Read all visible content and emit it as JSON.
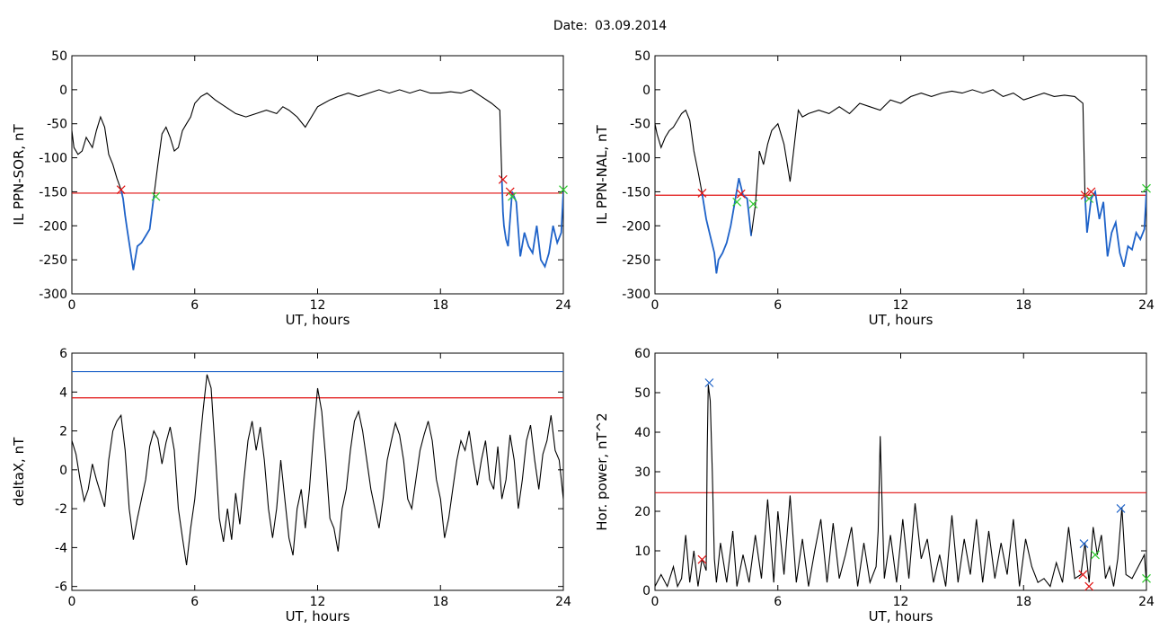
{
  "header": {
    "date_label": "Date:",
    "date_value": "03.09.2014"
  },
  "colors": {
    "trace": "#000000",
    "highlight": "#1f63c9",
    "threshold": "#e01010",
    "upper_threshold": "#1f63c9",
    "marker_red": "#e01010",
    "marker_green": "#2ecc2e",
    "marker_blue": "#1f63c9"
  },
  "chart_data": [
    {
      "id": "p1",
      "type": "line",
      "xlabel": "UT, hours",
      "ylabel": "IL PPN-SOR, nT",
      "xlim": [
        0,
        24
      ],
      "ylim": [
        -300,
        50
      ],
      "xticks": [
        0,
        6,
        12,
        18,
        24
      ],
      "yticks": [
        50,
        0,
        -50,
        -100,
        -150,
        -200,
        -250,
        -300
      ],
      "series": [
        {
          "x": [
            0,
            0.1,
            0.3,
            0.5,
            0.7,
            0.8,
            1.0,
            1.2,
            1.4,
            1.6,
            1.8,
            2.0,
            2.2,
            2.4,
            2.5,
            2.6,
            2.7,
            2.8,
            3.0,
            3.2,
            3.4,
            3.6,
            3.8,
            4.0,
            4.2,
            4.4,
            4.6,
            4.8,
            5.0,
            5.2,
            5.4,
            5.6,
            5.8,
            6.0,
            6.3,
            6.6,
            7.0,
            7.5,
            8.0,
            8.5,
            9.0,
            9.5,
            10.0,
            10.3,
            10.6,
            11.0,
            11.4,
            11.8,
            12.0,
            12.3,
            12.6,
            13.0,
            13.5,
            14.0,
            14.5,
            15.0,
            15.5,
            16.0,
            16.5,
            17.0,
            17.5,
            18.0,
            18.5,
            19.0,
            19.5,
            20.0,
            20.5,
            20.9,
            21.0,
            21.05,
            21.1,
            21.2,
            21.3,
            21.5,
            21.7,
            21.9,
            22.1,
            22.3,
            22.5,
            22.7,
            22.9,
            23.1,
            23.3,
            23.5,
            23.7,
            23.9,
            24.0
          ],
          "y": [
            -60,
            -85,
            -95,
            -90,
            -70,
            -75,
            -85,
            -60,
            -40,
            -55,
            -95,
            -110,
            -130,
            -147,
            -160,
            -185,
            -205,
            -225,
            -265,
            -230,
            -225,
            -215,
            -205,
            -157,
            -110,
            -65,
            -55,
            -70,
            -90,
            -85,
            -60,
            -50,
            -40,
            -20,
            -10,
            -5,
            -15,
            -25,
            -35,
            -40,
            -35,
            -30,
            -35,
            -25,
            -30,
            -40,
            -55,
            -35,
            -25,
            -20,
            -15,
            -10,
            -5,
            -10,
            -5,
            0,
            -5,
            0,
            -5,
            0,
            -5,
            -5,
            -3,
            -5,
            0,
            -10,
            -20,
            -30,
            -132,
            -180,
            -200,
            -220,
            -230,
            -150,
            -165,
            -245,
            -210,
            -230,
            -240,
            -200,
            -250,
            -260,
            -240,
            -200,
            -225,
            -210,
            -150
          ]
        }
      ],
      "threshold": -152,
      "highlight_intervals": [
        [
          2.4,
          4.1
        ],
        [
          20.95,
          24.0
        ]
      ],
      "markers": [
        {
          "x": 2.4,
          "y": -147,
          "color": "red"
        },
        {
          "x": 4.1,
          "y": -157,
          "color": "green"
        },
        {
          "x": 21.05,
          "y": -132,
          "color": "red"
        },
        {
          "x": 21.4,
          "y": -150,
          "color": "red"
        },
        {
          "x": 21.5,
          "y": -157,
          "color": "green"
        },
        {
          "x": 24.0,
          "y": -147,
          "color": "green"
        }
      ]
    },
    {
      "id": "p2",
      "type": "line",
      "xlabel": "UT, hours",
      "ylabel": "IL PPN-NAL, nT",
      "xlim": [
        0,
        24
      ],
      "ylim": [
        -300,
        50
      ],
      "xticks": [
        0,
        6,
        12,
        18,
        24
      ],
      "yticks": [
        50,
        0,
        -50,
        -100,
        -150,
        -200,
        -250,
        -300
      ],
      "series": [
        {
          "x": [
            0,
            0.1,
            0.3,
            0.5,
            0.7,
            0.9,
            1.1,
            1.3,
            1.5,
            1.7,
            1.9,
            2.1,
            2.3,
            2.5,
            2.7,
            2.9,
            3.0,
            3.1,
            3.3,
            3.5,
            3.7,
            3.9,
            4.1,
            4.3,
            4.5,
            4.7,
            4.9,
            5.1,
            5.3,
            5.5,
            5.7,
            6.0,
            6.3,
            6.6,
            7.0,
            7.2,
            7.5,
            8.0,
            8.5,
            9.0,
            9.5,
            10.0,
            10.5,
            11.0,
            11.5,
            12.0,
            12.5,
            13.0,
            13.5,
            14.0,
            14.5,
            15.0,
            15.5,
            16.0,
            16.5,
            17.0,
            17.5,
            18.0,
            18.5,
            19.0,
            19.5,
            20.0,
            20.5,
            20.9,
            21.0,
            21.1,
            21.2,
            21.3,
            21.5,
            21.7,
            21.9,
            22.1,
            22.3,
            22.5,
            22.7,
            22.9,
            23.1,
            23.3,
            23.5,
            23.7,
            23.9,
            24.0
          ],
          "y": [
            -50,
            -65,
            -85,
            -70,
            -60,
            -55,
            -45,
            -35,
            -30,
            -45,
            -90,
            -120,
            -152,
            -190,
            -215,
            -240,
            -270,
            -250,
            -240,
            -225,
            -200,
            -165,
            -130,
            -155,
            -160,
            -215,
            -170,
            -90,
            -110,
            -80,
            -60,
            -50,
            -80,
            -135,
            -30,
            -40,
            -35,
            -30,
            -35,
            -25,
            -35,
            -20,
            -25,
            -30,
            -15,
            -20,
            -10,
            -5,
            -10,
            -5,
            -2,
            -5,
            0,
            -5,
            0,
            -10,
            -5,
            -15,
            -10,
            -5,
            -10,
            -8,
            -10,
            -20,
            -155,
            -210,
            -185,
            -160,
            -150,
            -190,
            -165,
            -245,
            -210,
            -195,
            -240,
            -260,
            -230,
            -235,
            -210,
            -220,
            -205,
            -150
          ]
        }
      ],
      "threshold": -155,
      "highlight_intervals": [
        [
          2.3,
          4.8
        ],
        [
          20.95,
          24.0
        ]
      ],
      "markers": [
        {
          "x": 2.3,
          "y": -152,
          "color": "red"
        },
        {
          "x": 4.0,
          "y": -165,
          "color": "green"
        },
        {
          "x": 4.2,
          "y": -153,
          "color": "red"
        },
        {
          "x": 4.8,
          "y": -168,
          "color": "green"
        },
        {
          "x": 21.0,
          "y": -155,
          "color": "red"
        },
        {
          "x": 21.3,
          "y": -150,
          "color": "red"
        },
        {
          "x": 21.2,
          "y": -160,
          "color": "green"
        },
        {
          "x": 24.0,
          "y": -145,
          "color": "green"
        }
      ]
    },
    {
      "id": "p3",
      "type": "line",
      "xlabel": "UT, hours",
      "ylabel": "deltaX, nT",
      "xlim": [
        0,
        24
      ],
      "ylim": [
        -6.2,
        6
      ],
      "xticks": [
        0,
        6,
        12,
        18,
        24
      ],
      "yticks": [
        6,
        4,
        2,
        0,
        -2,
        -4,
        -6
      ],
      "series": [
        {
          "x": [
            0,
            0.2,
            0.4,
            0.6,
            0.8,
            1.0,
            1.2,
            1.4,
            1.6,
            1.8,
            2.0,
            2.2,
            2.4,
            2.6,
            2.8,
            3.0,
            3.2,
            3.4,
            3.6,
            3.8,
            4.0,
            4.2,
            4.4,
            4.6,
            4.8,
            5.0,
            5.2,
            5.4,
            5.6,
            5.8,
            6.0,
            6.2,
            6.4,
            6.6,
            6.8,
            7.0,
            7.2,
            7.4,
            7.6,
            7.8,
            8.0,
            8.2,
            8.4,
            8.6,
            8.8,
            9.0,
            9.2,
            9.4,
            9.6,
            9.8,
            10.0,
            10.2,
            10.4,
            10.6,
            10.8,
            11.0,
            11.2,
            11.4,
            11.6,
            11.8,
            12.0,
            12.2,
            12.4,
            12.6,
            12.8,
            13.0,
            13.2,
            13.4,
            13.6,
            13.8,
            14.0,
            14.2,
            14.4,
            14.6,
            14.8,
            15.0,
            15.2,
            15.4,
            15.6,
            15.8,
            16.0,
            16.2,
            16.4,
            16.6,
            16.8,
            17.0,
            17.2,
            17.4,
            17.6,
            17.8,
            18.0,
            18.2,
            18.4,
            18.6,
            18.8,
            19.0,
            19.2,
            19.4,
            19.6,
            19.8,
            20.0,
            20.2,
            20.4,
            20.6,
            20.8,
            21.0,
            21.2,
            21.4,
            21.6,
            21.8,
            22.0,
            22.2,
            22.4,
            22.6,
            22.8,
            23.0,
            23.2,
            23.4,
            23.6,
            23.8,
            24.0
          ],
          "y": [
            1.5,
            0.8,
            -0.5,
            -1.6,
            -1.0,
            0.3,
            -0.5,
            -1.2,
            -1.9,
            0.5,
            2.0,
            2.5,
            2.8,
            1.0,
            -2.0,
            -3.6,
            -2.5,
            -1.5,
            -0.5,
            1.2,
            2.0,
            1.6,
            0.3,
            1.4,
            2.2,
            1.0,
            -2.0,
            -3.5,
            -4.9,
            -3.0,
            -1.5,
            0.8,
            3.0,
            4.9,
            4.2,
            1.0,
            -2.5,
            -3.7,
            -2.0,
            -3.6,
            -1.2,
            -2.8,
            -0.5,
            1.5,
            2.5,
            1.0,
            2.2,
            0.5,
            -2.0,
            -3.5,
            -2.0,
            0.5,
            -1.5,
            -3.5,
            -4.4,
            -2.0,
            -1.0,
            -3.0,
            -1.0,
            1.8,
            4.2,
            3.0,
            0.5,
            -2.5,
            -3.0,
            -4.2,
            -2.0,
            -1.0,
            1.0,
            2.5,
            3.0,
            2.0,
            0.5,
            -1.0,
            -2.0,
            -3.0,
            -1.5,
            0.5,
            1.5,
            2.4,
            1.8,
            0.5,
            -1.5,
            -2.0,
            -0.5,
            1.0,
            1.8,
            2.5,
            1.5,
            -0.5,
            -1.5,
            -3.5,
            -2.5,
            -1.0,
            0.5,
            1.5,
            1.0,
            2.0,
            0.5,
            -0.8,
            0.5,
            1.5,
            -0.5,
            -1.0,
            1.2,
            -1.5,
            -0.5,
            1.8,
            0.5,
            -2.0,
            -0.5,
            1.5,
            2.3,
            0.5,
            -1.0,
            0.8,
            1.5,
            2.8,
            1.0,
            0.5,
            -1.5
          ]
        }
      ],
      "thresholds": [
        {
          "value": 3.7,
          "color": "red"
        },
        {
          "value": 5.05,
          "color": "blue"
        }
      ]
    },
    {
      "id": "p4",
      "type": "line",
      "xlabel": "UT, hours",
      "ylabel": "Hor. power, nT^2",
      "xlim": [
        0,
        24
      ],
      "ylim": [
        0,
        60
      ],
      "xticks": [
        0,
        6,
        12,
        18,
        24
      ],
      "yticks": [
        0,
        10,
        20,
        30,
        40,
        50,
        60
      ],
      "series": [
        {
          "x": [
            0,
            0.3,
            0.6,
            0.9,
            1.1,
            1.3,
            1.5,
            1.7,
            1.9,
            2.1,
            2.3,
            2.5,
            2.55,
            2.6,
            2.7,
            2.8,
            2.9,
            3.0,
            3.2,
            3.5,
            3.8,
            4.0,
            4.3,
            4.6,
            4.9,
            5.2,
            5.5,
            5.8,
            6.0,
            6.3,
            6.6,
            6.9,
            7.2,
            7.5,
            7.8,
            8.1,
            8.4,
            8.7,
            9.0,
            9.3,
            9.6,
            9.9,
            10.2,
            10.5,
            10.8,
            10.9,
            11.0,
            11.1,
            11.2,
            11.5,
            11.8,
            12.1,
            12.4,
            12.7,
            13.0,
            13.3,
            13.6,
            13.9,
            14.2,
            14.5,
            14.8,
            15.1,
            15.4,
            15.7,
            16.0,
            16.3,
            16.6,
            16.9,
            17.2,
            17.5,
            17.8,
            18.1,
            18.4,
            18.7,
            19.0,
            19.3,
            19.6,
            19.9,
            20.2,
            20.5,
            20.8,
            21.0,
            21.2,
            21.4,
            21.6,
            21.8,
            22.0,
            22.2,
            22.4,
            22.6,
            22.8,
            23.0,
            23.3,
            23.6,
            23.9,
            24.0
          ],
          "y": [
            1,
            4,
            1,
            6,
            1,
            3,
            14,
            2,
            10,
            1,
            8,
            5,
            35,
            52,
            48,
            30,
            8,
            2,
            12,
            2,
            15,
            1,
            9,
            2,
            14,
            3,
            23,
            2,
            20,
            4,
            24,
            2,
            13,
            1,
            10,
            18,
            2,
            17,
            3,
            9,
            16,
            1,
            12,
            2,
            6,
            15,
            39,
            20,
            3,
            14,
            2,
            18,
            3,
            22,
            8,
            13,
            2,
            9,
            1,
            19,
            2,
            13,
            4,
            18,
            2,
            15,
            3,
            12,
            4,
            18,
            1,
            13,
            6,
            2,
            3,
            1,
            7,
            2,
            16,
            3,
            4,
            12,
            2,
            16,
            9,
            14,
            3,
            6,
            1,
            8,
            21,
            4,
            3,
            6,
            9,
            2
          ]
        }
      ],
      "threshold": 24.7,
      "markers": [
        {
          "x": 2.3,
          "y": 7.8,
          "color": "red"
        },
        {
          "x": 2.65,
          "y": 52.5,
          "color": "blue"
        },
        {
          "x": 20.9,
          "y": 4.0,
          "color": "red"
        },
        {
          "x": 20.95,
          "y": 11.8,
          "color": "blue"
        },
        {
          "x": 21.2,
          "y": 1.0,
          "color": "red"
        },
        {
          "x": 21.5,
          "y": 9.0,
          "color": "green"
        },
        {
          "x": 22.75,
          "y": 20.7,
          "color": "blue"
        },
        {
          "x": 24.0,
          "y": 3.0,
          "color": "green"
        }
      ]
    }
  ]
}
